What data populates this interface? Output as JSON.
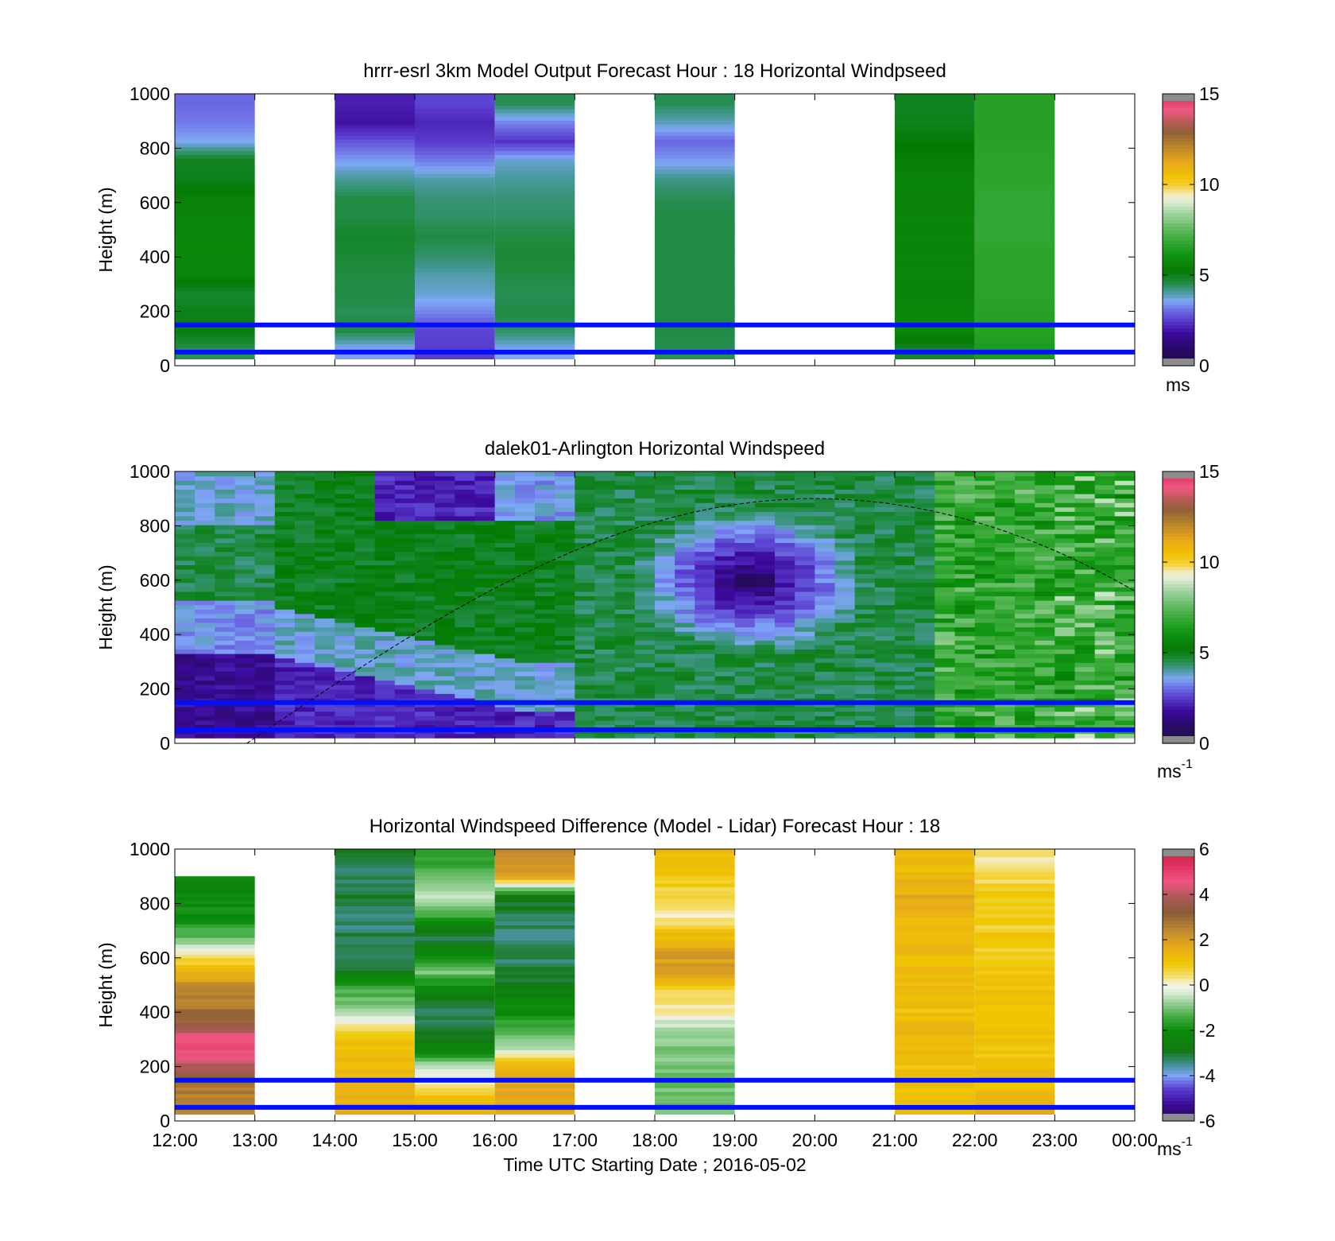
{
  "figure": {
    "xlabel": "Time UTC  Starting Date ; 2016-05-02",
    "x_ticks": [
      "12:00",
      "13:00",
      "14:00",
      "15:00",
      "16:00",
      "17:00",
      "18:00",
      "19:00",
      "20:00",
      "21:00",
      "22:00",
      "23:00",
      "00:00"
    ],
    "reference_lines_m": [
      50,
      150
    ],
    "reference_line_color": "#0010ff"
  },
  "chart_data": [
    {
      "type": "heatmap",
      "title": "hrrr-esrl 3km Model Output   Forecast Hour : 18 Horizontal Windpseed",
      "ylabel": "Height (m)",
      "y_ticks": [
        "0",
        "200",
        "400",
        "600",
        "800",
        "1000"
      ],
      "ylim": [
        0,
        1000
      ],
      "x_range_hours": [
        12,
        24
      ],
      "colorbar": {
        "ticks": [
          "0",
          "5",
          "10",
          "15"
        ],
        "range": [
          0,
          15
        ],
        "unit": "ms",
        "unit_sup": "",
        "palette": "speed"
      },
      "columns": [
        {
          "start": 12,
          "end": 13,
          "values": [
            4.5,
            5.1,
            5.0,
            4.8,
            5.6,
            5.7,
            5.7,
            5.6,
            5.5,
            5.0,
            4.9,
            3.6,
            3.2,
            3.0
          ]
        },
        {
          "start": 14,
          "end": 15,
          "values": [
            3.5,
            4.6,
            4.5,
            4.6,
            4.6,
            4.7,
            4.8,
            4.6,
            4.6,
            4.1,
            3.5,
            2.8,
            1.9,
            2.1
          ]
        },
        {
          "start": 15,
          "end": 16,
          "values": [
            2.5,
            2.6,
            3.3,
            3.8,
            4.0,
            4.4,
            4.6,
            4.4,
            4.3,
            4.0,
            3.2,
            2.5,
            2.2,
            2.6
          ]
        },
        {
          "start": 16,
          "end": 17,
          "values": [
            3.6,
            4.4,
            4.6,
            4.5,
            4.6,
            4.7,
            4.6,
            4.4,
            4.3,
            4.1,
            3.8,
            2.4,
            3.3,
            4.5
          ]
        },
        {
          "start": 18,
          "end": 19,
          "values": [
            4.5,
            4.6,
            4.6,
            4.6,
            4.6,
            4.6,
            4.6,
            4.6,
            4.5,
            4.2,
            3.5,
            3.0,
            3.9,
            4.5
          ]
        },
        {
          "start": 21,
          "end": 22,
          "values": [
            4.8,
            5.7,
            5.7,
            5.6,
            5.6,
            5.6,
            5.6,
            5.6,
            5.5,
            5.6,
            5.4,
            5.2,
            5.0,
            4.9
          ]
        },
        {
          "start": 22,
          "end": 23,
          "values": [
            6.4,
            6.6,
            6.6,
            6.7,
            6.7,
            6.7,
            6.8,
            6.8,
            6.8,
            6.7,
            6.7,
            6.6,
            6.6,
            6.6
          ]
        }
      ]
    },
    {
      "type": "heatmap",
      "title": "dalek01-Arlington  Horizontal Windspeed",
      "ylabel": "Height (m)",
      "y_ticks": [
        "0",
        "200",
        "400",
        "600",
        "800",
        "1000"
      ],
      "ylim": [
        0,
        1000
      ],
      "x_range_hours": [
        12,
        24
      ],
      "colorbar": {
        "ticks": [
          "0",
          "5",
          "10",
          "15"
        ],
        "range": [
          0,
          15
        ],
        "unit": "ms",
        "unit_sup": "-1",
        "palette": "speed"
      },
      "lidar_end_hour": 23.85,
      "column_width_hours": 0.25,
      "features": {
        "low_jet_end_hour": 16.9,
        "min_core": {
          "center_hour": 19.2,
          "center_height_m": 600,
          "value": 0.8
        },
        "sunset_arc": {
          "start_hour": 12.9,
          "peak_hour": 20.0,
          "peak_height_m": 900,
          "end_hour": 24.0,
          "end_height_m": 560
        }
      }
    },
    {
      "type": "heatmap",
      "title": "Horizontal Windspeed Difference (Model - Lidar) Forecast Hour : 18",
      "ylabel": "Height (m)",
      "y_ticks": [
        "0",
        "200",
        "400",
        "600",
        "800",
        "1000"
      ],
      "ylim": [
        0,
        1000
      ],
      "x_range_hours": [
        12,
        24
      ],
      "colorbar": {
        "ticks": [
          "-6",
          "-4",
          "-2",
          "0",
          "2",
          "4",
          "6"
        ],
        "range": [
          -6,
          6
        ],
        "unit": "ms",
        "unit_sup": "-1",
        "palette": "diff"
      },
      "columns": [
        {
          "start": 12,
          "end": 13,
          "top": 900,
          "values": [
            2.6,
            2.7,
            3.5,
            4.6,
            4.6,
            3.2,
            2.6,
            2.3,
            1.3,
            0.2,
            -1.2,
            -2.0,
            -2.1,
            -2.2
          ]
        },
        {
          "start": 14,
          "end": 15,
          "values": [
            1.5,
            1.4,
            1.2,
            1.3,
            0.6,
            -0.8,
            -1.3,
            -2.8,
            -3.3,
            -3.2,
            -3.5,
            -3.0,
            -3.3,
            -3.1
          ]
        },
        {
          "start": 15,
          "end": 16,
          "values": [
            1.4,
            0.4,
            -0.5,
            -2.4,
            -3.1,
            -3.3,
            -2.4,
            -1.0,
            -2.3,
            -3.2,
            -1.4,
            -0.4,
            -1.3,
            -1.7
          ]
        },
        {
          "start": 16,
          "end": 17,
          "values": [
            1.8,
            1.8,
            1.4,
            -0.6,
            -1.5,
            -2.0,
            -2.5,
            -3.2,
            -3.3,
            -3.3,
            -3.3,
            -2.8,
            1.6,
            2.3
          ]
        },
        {
          "start": 18,
          "end": 19,
          "values": [
            -1.0,
            -1.1,
            -1.0,
            -0.9,
            -0.6,
            0.2,
            0.6,
            1.9,
            2.0,
            1.2,
            0.1,
            0.6,
            1.0,
            1.2
          ]
        },
        {
          "start": 21,
          "end": 22,
          "values": [
            1.1,
            1.2,
            1.0,
            1.3,
            1.4,
            1.1,
            1.3,
            1.2,
            1.2,
            1.4,
            1.4,
            1.6,
            1.3,
            1.2
          ]
        },
        {
          "start": 22,
          "end": 23,
          "values": [
            1.5,
            1.1,
            1.2,
            1.0,
            1.2,
            1.1,
            1.0,
            1.1,
            0.8,
            0.9,
            0.7,
            0.9,
            0.5,
            0.3
          ]
        }
      ]
    }
  ]
}
